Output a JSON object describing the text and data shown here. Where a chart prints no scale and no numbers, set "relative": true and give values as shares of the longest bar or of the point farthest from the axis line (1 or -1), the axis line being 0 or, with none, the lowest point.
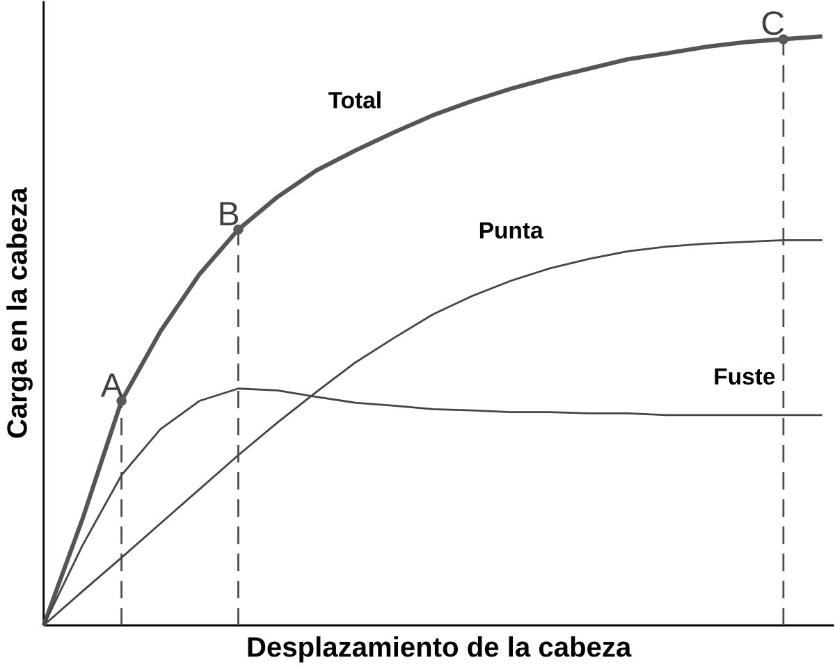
{
  "chart_data": {
    "type": "line",
    "relative": true,
    "xlabel": "Desplazamiento de la cabeza",
    "ylabel": "Carga en la cabeza",
    "categories": [
      null,
      null,
      null,
      null,
      null,
      null,
      null,
      null,
      null,
      null,
      null,
      null,
      null,
      null,
      null,
      null,
      null,
      null,
      null,
      null,
      null
    ],
    "series": [
      {
        "name": "Total",
        "color": "#555555",
        "values": [
          0,
          0.181,
          0.381,
          0.499,
          0.596,
          0.672,
          0.727,
          0.772,
          0.806,
          0.837,
          0.866,
          0.89,
          0.911,
          0.929,
          0.945,
          0.961,
          0.971,
          0.982,
          0.99,
          0.995,
          1
        ]
      },
      {
        "name": "Punta",
        "color": "#444444",
        "values": [
          0,
          0.058,
          0.115,
          0.173,
          0.231,
          0.289,
          0.344,
          0.396,
          0.446,
          0.488,
          0.528,
          0.559,
          0.585,
          0.606,
          0.622,
          0.635,
          0.643,
          0.648,
          0.651,
          0.654,
          0.654
        ]
      },
      {
        "name": "Fuste",
        "color": "#444444",
        "values": [
          0,
          0.136,
          0.255,
          0.333,
          0.381,
          0.402,
          0.399,
          0.388,
          0.378,
          0.373,
          0.367,
          0.365,
          0.362,
          0.362,
          0.36,
          0.36,
          0.357,
          0.357,
          0.357,
          0.357,
          0.357
        ]
      }
    ],
    "annotations": [
      {
        "text": "A",
        "y": 0.381
      },
      {
        "text": "B",
        "y": 0.672
      },
      {
        "text": "C",
        "y": 0.995
      }
    ],
    "marker": "none",
    "line_style": "solid"
  }
}
